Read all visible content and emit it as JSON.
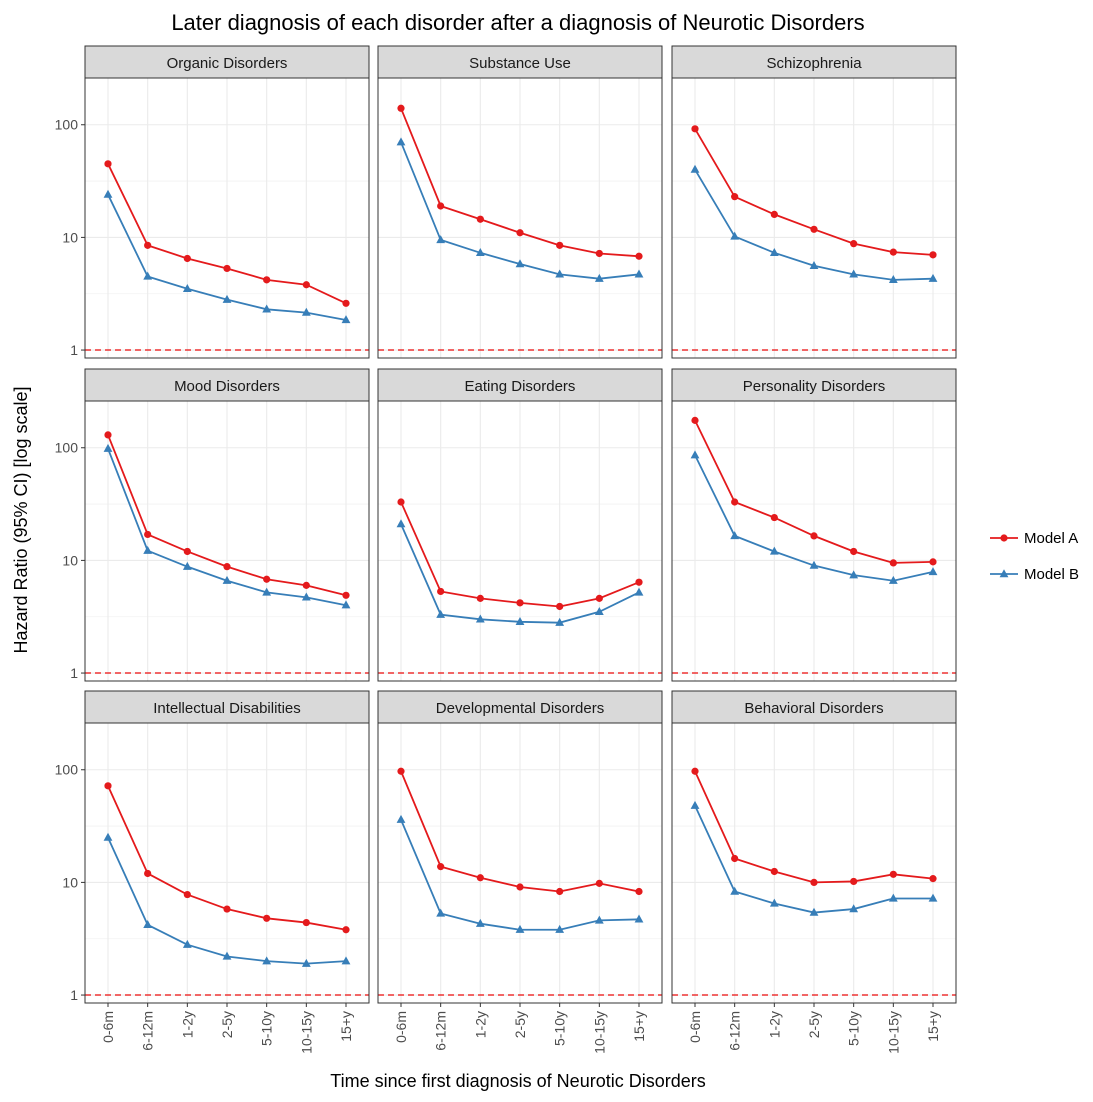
{
  "chart_data": {
    "type": "line",
    "title": "Later diagnosis of each disorder after a diagnosis of Neurotic Disorders",
    "xlabel": "Time since first diagnosis of Neurotic Disorders",
    "ylabel": "Hazard Ratio (95% CI) [log scale]",
    "y_scale": "log",
    "ylim": [
      0.85,
      260
    ],
    "y_ticks": [
      {
        "value": 1,
        "label": "1"
      },
      {
        "value": 10,
        "label": "10"
      },
      {
        "value": 100,
        "label": "100"
      }
    ],
    "reference_line": {
      "value": 1,
      "style": "dashed",
      "color": "#EE3333"
    },
    "categories": [
      "0-6m",
      "6-12m",
      "1-2y",
      "2-5y",
      "5-10y",
      "10-15y",
      "15+y"
    ],
    "grid": true,
    "legend": {
      "position": "right",
      "entries": [
        "Model A",
        "Model B"
      ]
    },
    "series_styles": [
      {
        "name": "Model A",
        "color": "#E41A1C",
        "marker": "circle"
      },
      {
        "name": "Model B",
        "color": "#377EB8",
        "marker": "triangle"
      }
    ],
    "panels": [
      {
        "title": "Organic Disorders",
        "series": [
          {
            "name": "Model A",
            "values": [
              45,
              8.5,
              6.5,
              5.3,
              4.2,
              3.8,
              2.6
            ]
          },
          {
            "name": "Model B",
            "values": [
              24,
              4.5,
              3.5,
              2.8,
              2.3,
              2.15,
              1.85
            ]
          }
        ]
      },
      {
        "title": "Substance Use",
        "series": [
          {
            "name": "Model A",
            "values": [
              140,
              19,
              14.5,
              11,
              8.5,
              7.2,
              6.8
            ]
          },
          {
            "name": "Model B",
            "values": [
              70,
              9.5,
              7.3,
              5.8,
              4.7,
              4.3,
              4.7
            ]
          }
        ]
      },
      {
        "title": "Schizophrenia",
        "series": [
          {
            "name": "Model A",
            "values": [
              92,
              23,
              16,
              11.8,
              8.8,
              7.4,
              7.0
            ]
          },
          {
            "name": "Model B",
            "values": [
              40,
              10.2,
              7.3,
              5.6,
              4.7,
              4.2,
              4.3
            ]
          }
        ]
      },
      {
        "title": "Mood Disorders",
        "series": [
          {
            "name": "Model A",
            "values": [
              130,
              17,
              12,
              8.8,
              6.8,
              6.0,
              4.9
            ]
          },
          {
            "name": "Model B",
            "values": [
              98,
              12.2,
              8.8,
              6.6,
              5.2,
              4.7,
              4.0
            ]
          }
        ]
      },
      {
        "title": "Eating Disorders",
        "series": [
          {
            "name": "Model A",
            "values": [
              33,
              5.3,
              4.6,
              4.2,
              3.9,
              4.6,
              6.4
            ]
          },
          {
            "name": "Model B",
            "values": [
              21,
              3.3,
              3.0,
              2.85,
              2.8,
              3.5,
              5.2
            ]
          }
        ]
      },
      {
        "title": "Personality Disorders",
        "series": [
          {
            "name": "Model A",
            "values": [
              175,
              33,
              24,
              16.5,
              12,
              9.5,
              9.7
            ]
          },
          {
            "name": "Model B",
            "values": [
              86,
              16.5,
              12,
              9.0,
              7.4,
              6.6,
              7.9
            ]
          }
        ]
      },
      {
        "title": "Intellectual Disabilities",
        "series": [
          {
            "name": "Model A",
            "values": [
              72,
              12,
              7.8,
              5.8,
              4.8,
              4.4,
              3.8
            ]
          },
          {
            "name": "Model B",
            "values": [
              25,
              4.2,
              2.8,
              2.2,
              2.0,
              1.9,
              2.0
            ]
          }
        ]
      },
      {
        "title": "Developmental Disorders",
        "series": [
          {
            "name": "Model A",
            "values": [
              97,
              13.8,
              11,
              9.1,
              8.3,
              9.8,
              8.3
            ]
          },
          {
            "name": "Model B",
            "values": [
              36,
              5.3,
              4.3,
              3.8,
              3.8,
              4.6,
              4.7
            ]
          }
        ]
      },
      {
        "title": "Behavioral Disorders",
        "series": [
          {
            "name": "Model A",
            "values": [
              97,
              16.3,
              12.5,
              10,
              10.2,
              11.8,
              10.8
            ]
          },
          {
            "name": "Model B",
            "values": [
              48,
              8.3,
              6.5,
              5.4,
              5.8,
              7.2,
              7.2
            ]
          }
        ]
      }
    ]
  }
}
